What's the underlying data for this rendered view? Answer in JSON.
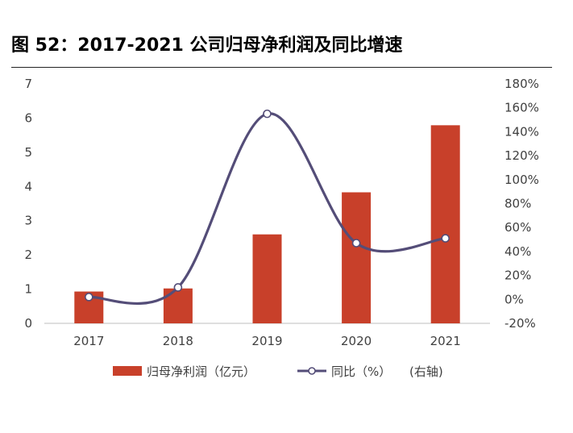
{
  "title": "图 52：2017-2021 公司归母净利润及同比增速",
  "chart_data": {
    "type": "bar+line",
    "categories": [
      "2017",
      "2018",
      "2019",
      "2020",
      "2021"
    ],
    "series": [
      {
        "name": "归母净利润（亿元）",
        "type": "bar",
        "axis": "left",
        "values": [
          0.93,
          1.02,
          2.6,
          3.83,
          5.79
        ]
      },
      {
        "name": "同比（%）",
        "type": "line",
        "axis": "right",
        "values": [
          2,
          10,
          155,
          47,
          51
        ]
      }
    ],
    "y_left": {
      "min": 0,
      "max": 7,
      "ticks": [
        "0",
        "1",
        "2",
        "3",
        "4",
        "5",
        "6",
        "7"
      ]
    },
    "y_right": {
      "min": -20,
      "max": 180,
      "ticks": [
        "-20%",
        "0%",
        "20%",
        "40%",
        "60%",
        "80%",
        "100%",
        "120%",
        "140%",
        "160%",
        "180%"
      ]
    },
    "legend": {
      "placement": "bottom",
      "bar_label": "归母净利润（亿元）",
      "line_label": "同比（%）",
      "axis_note": "(右轴)"
    },
    "colors": {
      "bar": "#c8402a",
      "line": "#544d78"
    }
  }
}
